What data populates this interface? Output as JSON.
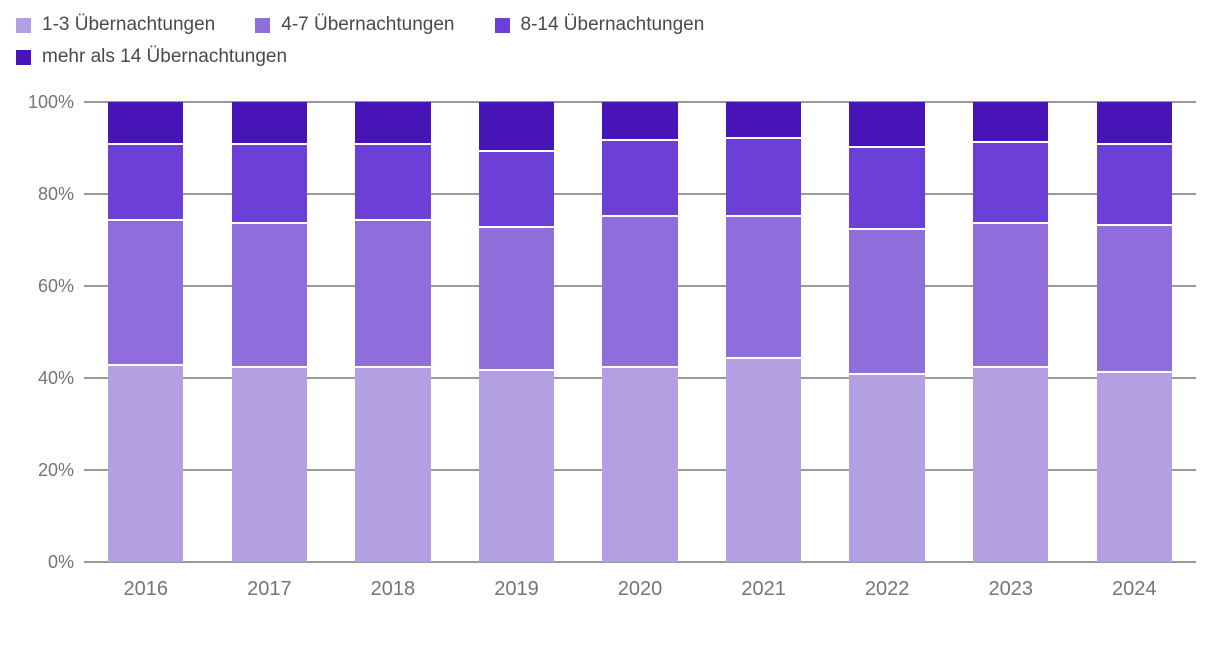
{
  "chart_data": {
    "type": "bar",
    "stacked": true,
    "stack_mode": "percent",
    "title": "",
    "xlabel": "",
    "ylabel": "",
    "categories": [
      "2016",
      "2017",
      "2018",
      "2019",
      "2020",
      "2021",
      "2022",
      "2023",
      "2024"
    ],
    "series": [
      {
        "name": "1-3 Übernachtungen",
        "color": "#b3a0e3",
        "values": [
          43.0,
          42.5,
          42.5,
          42.0,
          42.5,
          44.5,
          41.0,
          42.5,
          41.5
        ]
      },
      {
        "name": "4-7 Übernachtungen",
        "color": "#8f6edb",
        "values": [
          31.5,
          31.5,
          32.0,
          31.0,
          33.0,
          31.0,
          31.5,
          31.5,
          32.0
        ]
      },
      {
        "name": "8-14 Übernachtungen",
        "color": "#6c3fd6",
        "values": [
          16.5,
          17.0,
          16.5,
          16.5,
          16.5,
          17.0,
          18.0,
          17.5,
          17.5
        ]
      },
      {
        "name": "mehr als 14 Übernachtungen",
        "color": "#4714b8",
        "values": [
          9.0,
          9.0,
          9.0,
          10.5,
          8.0,
          7.5,
          9.5,
          8.5,
          9.0
        ]
      }
    ],
    "yticks": [
      "0%",
      "20%",
      "40%",
      "60%",
      "80%",
      "100%"
    ],
    "ylim": [
      0,
      100
    ],
    "grid": "horizontal",
    "gridline_color": "#9a9a9a",
    "axis_text_color": "#757575",
    "legend_position": "top"
  }
}
